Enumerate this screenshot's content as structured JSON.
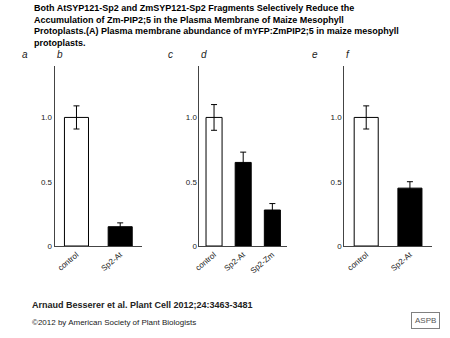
{
  "title": "Both AtSYP121-Sp2 and ZmSYP121-Sp2 Fragments Selectively Reduce the Accumulation of Zm-PIP2;5 in the Plasma Membrane of Maize Mesophyll Protoplasts.(A) Plasma membrane abundance of mYFP:ZmPIP2;5 in maize mesophyll protoplasts.",
  "annotations": [
    "Arnaud Besserer et al. Plant Cell 2012;24:3463-3481",
    "©2012 by American Society of Plant Biologists",
    "ASPB"
  ],
  "chart_data": [
    {
      "type": "bar",
      "title": "b",
      "annotations": [
        "a"
      ],
      "categories": [
        "control",
        "Sp2-At"
      ],
      "values": [
        1.0,
        0.15
      ],
      "errors": [
        0.09,
        0.03
      ],
      "colors": [
        "white",
        "black"
      ],
      "ylim": [
        0,
        1.4
      ],
      "yticks": [
        0,
        0.5,
        {
          "value": 1.0,
          "label": "1.0"
        }
      ],
      "grid": false
    },
    {
      "type": "bar",
      "title": "d",
      "annotations": [
        "c"
      ],
      "categories": [
        "control",
        "Sp2-At",
        "Sp2-Zm"
      ],
      "values": [
        1.0,
        0.65,
        0.28
      ],
      "errors": [
        0.1,
        0.08,
        0.05
      ],
      "colors": [
        "white",
        "black",
        "black"
      ],
      "ylim": [
        0,
        1.4
      ],
      "yticks": [
        0,
        0.5,
        {
          "value": 1.0,
          "label": "1.0"
        }
      ],
      "grid": false
    },
    {
      "type": "bar",
      "title": "f",
      "annotations": [
        "e"
      ],
      "categories": [
        "control",
        "Sp2-At"
      ],
      "values": [
        1.0,
        0.45
      ],
      "errors": [
        0.09,
        0.05
      ],
      "colors": [
        "white",
        "black"
      ],
      "ylim": [
        0,
        1.4
      ],
      "yticks": [
        0,
        0.5,
        {
          "value": 1.0,
          "label": "1.0"
        }
      ],
      "grid": false
    }
  ]
}
